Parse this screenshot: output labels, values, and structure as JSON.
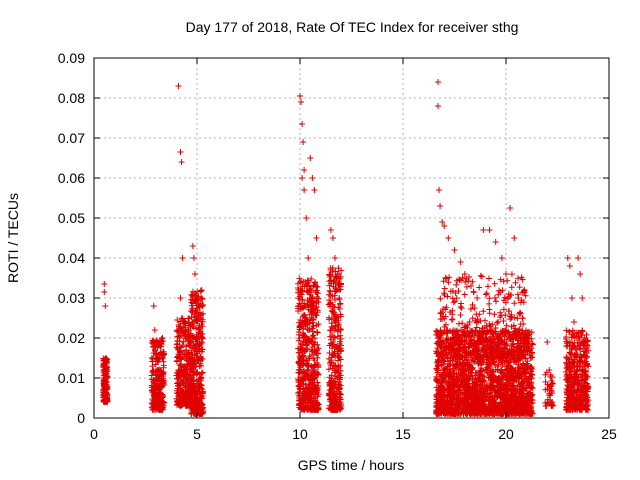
{
  "chart_data": {
    "type": "scatter",
    "title": "Day 177 of 2018, Rate Of TEC Index for receiver sthg",
    "xlabel": "GPS time / hours",
    "ylabel": "ROTI / TECUs",
    "xlim": [
      0,
      25
    ],
    "ylim": [
      0,
      0.09
    ],
    "xticks": [
      0,
      5,
      10,
      15,
      20,
      25
    ],
    "xtick_labels": [
      "0",
      "5",
      "10",
      "15",
      "20",
      "25"
    ],
    "yticks": [
      0,
      0.01,
      0.02,
      0.03,
      0.04,
      0.05,
      0.06,
      0.07,
      0.08,
      0.09
    ],
    "ytick_labels": [
      "0",
      "0.01",
      "0.02",
      "0.03",
      "0.04",
      "0.05",
      "0.06",
      "0.07",
      "0.08",
      "0.09"
    ],
    "grid": true,
    "marker": "+",
    "color": "#e00000",
    "series": [
      {
        "name": "ROTI",
        "x": [
          0.5,
          0.5,
          0.55,
          0.55,
          0.6,
          0.5,
          0.55,
          0.6,
          0.52,
          0.58,
          2.9,
          2.95,
          3.0,
          3.05,
          3.1,
          3.2,
          3.3,
          3.0,
          3.1,
          3.2,
          4.1,
          4.2,
          4.25,
          4.3,
          4.2,
          4.4,
          4.5,
          4.6,
          4.8,
          4.85,
          4.9,
          5.0,
          5.1,
          5.2,
          4.7,
          4.9,
          5.0,
          4.95,
          10.0,
          10.05,
          10.1,
          10.15,
          10.2,
          10.1,
          10.2,
          10.3,
          10.4,
          10.5,
          10.6,
          10.7,
          10.8,
          10.6,
          10.7,
          11.5,
          11.6,
          11.7,
          11.8,
          11.9,
          11.7,
          11.8,
          11.75,
          16.7,
          16.7,
          16.75,
          16.8,
          16.9,
          17.0,
          17.2,
          17.5,
          17.8,
          18.0,
          18.3,
          18.6,
          18.9,
          19.2,
          19.5,
          19.8,
          20.0,
          20.2,
          20.4,
          20.6,
          20.8,
          21.0,
          21.2,
          20.3,
          19.4,
          18.5,
          17.6,
          22.0,
          22.1,
          22.2,
          23.0,
          23.1,
          23.2,
          23.3,
          23.4,
          23.5,
          23.6,
          23.7,
          23.8,
          23.9,
          23.5,
          23.6
        ],
        "y": [
          0.0335,
          0.0315,
          0.028,
          0.0145,
          0.012,
          0.0095,
          0.008,
          0.007,
          0.006,
          0.005,
          0.028,
          0.022,
          0.019,
          0.015,
          0.012,
          0.01,
          0.008,
          0.006,
          0.004,
          0.003,
          0.083,
          0.0665,
          0.064,
          0.04,
          0.03,
          0.024,
          0.02,
          0.016,
          0.043,
          0.04,
          0.036,
          0.03,
          0.02,
          0.01,
          0.008,
          0.005,
          0.003,
          0.002,
          0.0805,
          0.079,
          0.0735,
          0.069,
          0.062,
          0.06,
          0.057,
          0.05,
          0.04,
          0.065,
          0.06,
          0.057,
          0.045,
          0.03,
          0.01,
          0.047,
          0.045,
          0.04,
          0.035,
          0.03,
          0.02,
          0.01,
          0.003,
          0.084,
          0.078,
          0.057,
          0.053,
          0.049,
          0.048,
          0.045,
          0.042,
          0.039,
          0.036,
          0.033,
          0.03,
          0.047,
          0.047,
          0.044,
          0.04,
          0.036,
          0.0525,
          0.045,
          0.03,
          0.025,
          0.02,
          0.015,
          0.01,
          0.008,
          0.006,
          0.005,
          0.019,
          0.012,
          0.008,
          0.04,
          0.038,
          0.03,
          0.024,
          0.02,
          0.04,
          0.036,
          0.03,
          0.02,
          0.015,
          0.01,
          0.005
        ]
      }
    ],
    "clusters": [
      {
        "x": [
          0.45,
          0.65
        ],
        "y": [
          0.004,
          0.015
        ],
        "n": 160
      },
      {
        "x": [
          2.8,
          3.4
        ],
        "y": [
          0.002,
          0.02
        ],
        "n": 260
      },
      {
        "x": [
          4.0,
          4.7
        ],
        "y": [
          0.003,
          0.025
        ],
        "n": 320
      },
      {
        "x": [
          4.7,
          5.3
        ],
        "y": [
          0.001,
          0.032
        ],
        "n": 380
      },
      {
        "x": [
          9.9,
          10.9
        ],
        "y": [
          0.002,
          0.035
        ],
        "n": 520
      },
      {
        "x": [
          11.4,
          12.0
        ],
        "y": [
          0.002,
          0.038
        ],
        "n": 320
      },
      {
        "x": [
          16.6,
          21.3
        ],
        "y": [
          0.001,
          0.022
        ],
        "n": 2200
      },
      {
        "x": [
          16.8,
          21.0
        ],
        "y": [
          0.015,
          0.036
        ],
        "n": 350
      },
      {
        "x": [
          21.9,
          22.3
        ],
        "y": [
          0.003,
          0.012
        ],
        "n": 40
      },
      {
        "x": [
          22.9,
          24.0
        ],
        "y": [
          0.002,
          0.022
        ],
        "n": 420
      }
    ]
  }
}
